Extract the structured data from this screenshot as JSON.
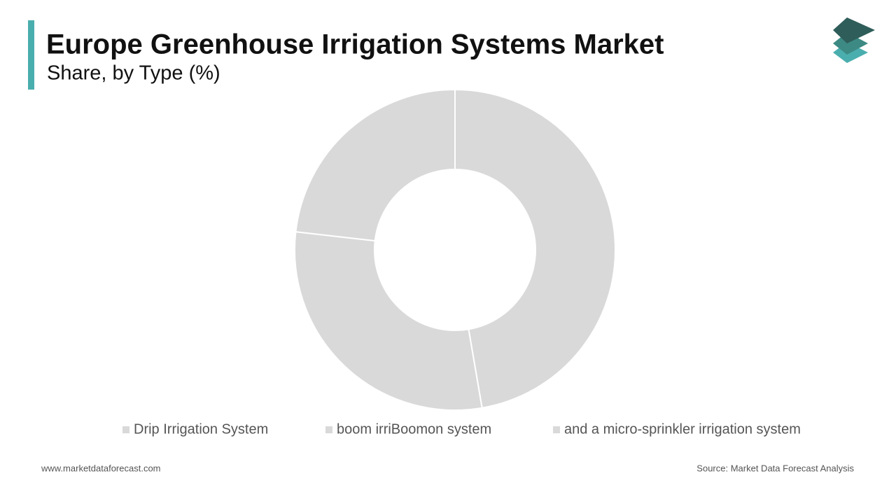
{
  "chart_data": {
    "type": "donut",
    "title": "Europe Greenhouse Irrigation Systems Market",
    "subtitle": "Share, by Type (%)",
    "series": [
      {
        "name": "Drip Irrigation System",
        "color": "#d9d9d9",
        "values": [
          47.3
        ]
      },
      {
        "name": "boom irriBoomon system",
        "color": "#d9d9d9",
        "values": [
          29.5
        ]
      },
      {
        "name": "and a micro-sprinkler irrigation system",
        "color": "#d9d9d9",
        "values": [
          23.2
        ]
      }
    ],
    "legend": "bottom"
  },
  "footer": {
    "website": "www.marketdataforecast.com",
    "source": "Source: Market Data Forecast Analysis"
  }
}
